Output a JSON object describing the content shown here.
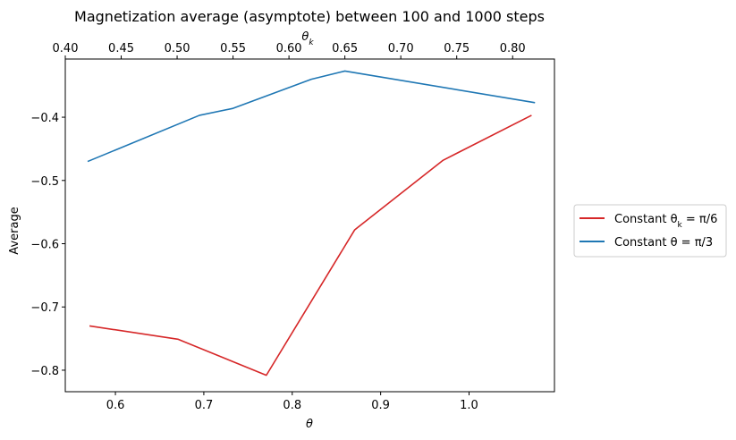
{
  "chart_data": {
    "type": "line",
    "title": "Magnetization average (asymptote) between 100 and 1000 steps",
    "xlabel": "θ",
    "ylabel": "Average",
    "top_xlabel": "θ",
    "top_xlabel_subscript": "k",
    "xlim": [
      0.5433,
      1.0966
    ],
    "ylim": [
      -0.834,
      -0.308
    ],
    "top_xlim": [
      0.4,
      0.8374
    ],
    "xticks": [
      0.6,
      0.7,
      0.8,
      0.9,
      1.0
    ],
    "xtick_labels": [
      "0.6",
      "0.7",
      "0.8",
      "0.9",
      "1.0"
    ],
    "yticks": [
      -0.8,
      -0.7,
      -0.6,
      -0.5,
      -0.4
    ],
    "ytick_labels": [
      "−0.8",
      "−0.7",
      "−0.6",
      "−0.5",
      "−0.4"
    ],
    "top_xticks": [
      0.4,
      0.45,
      0.5,
      0.55,
      0.6,
      0.65,
      0.7,
      0.75,
      0.8
    ],
    "top_xtick_labels": [
      "0.40",
      "0.45",
      "0.50",
      "0.55",
      "0.60",
      "0.65",
      "0.70",
      "0.75",
      "0.80"
    ],
    "grid": false,
    "legend_position": "outside-right",
    "series": [
      {
        "name_prefix": "Constant θ",
        "name_sub": "k",
        "name_suffix": " = π/6",
        "axis": "bottom",
        "color": "#d62728",
        "x": [
          0.5707,
          0.6707,
          0.7707,
          0.8707,
          0.9707,
          1.0707
        ],
        "y": [
          -0.73,
          -0.751,
          -0.808,
          -0.578,
          -0.468,
          -0.397
        ]
      },
      {
        "name_prefix": "Constant θ",
        "name_sub": "",
        "name_suffix": " = π/3",
        "axis": "top",
        "color": "#1f77b4",
        "x": [
          0.42,
          0.52,
          0.55,
          0.62,
          0.65,
          0.82
        ],
        "y": [
          -0.47,
          -0.397,
          -0.386,
          -0.34,
          -0.327,
          -0.377
        ]
      }
    ]
  }
}
